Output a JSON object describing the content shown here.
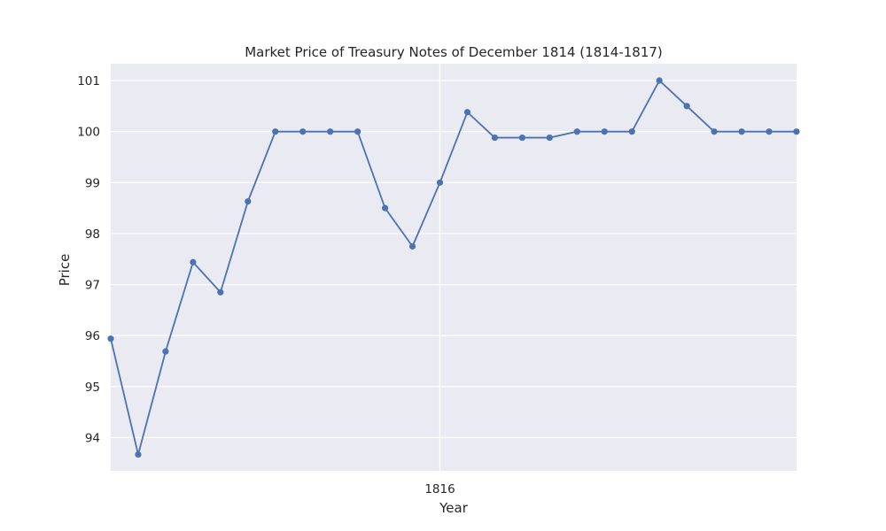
{
  "chart_data": {
    "type": "line",
    "title": "Market Price of Treasury Notes of December 1814 (1814-1817)",
    "xlabel": "Year",
    "ylabel": "Price",
    "x": [
      "1815-01",
      "1815-02",
      "1815-03",
      "1815-04",
      "1815-05",
      "1815-06",
      "1815-07",
      "1815-08",
      "1815-09",
      "1815-10",
      "1815-11",
      "1815-12",
      "1816-01",
      "1816-02",
      "1816-03",
      "1816-04",
      "1816-05",
      "1816-06",
      "1816-07",
      "1816-08",
      "1816-09",
      "1816-10",
      "1816-11",
      "1816-12",
      "1817-01",
      "1817-02"
    ],
    "series": [
      {
        "name": "",
        "color": "#4c72b0",
        "values": [
          95.94,
          93.67,
          95.69,
          97.44,
          96.85,
          98.63,
          100.0,
          100.0,
          100.0,
          100.0,
          98.5,
          97.75,
          99.0,
          100.38,
          99.88,
          99.88,
          99.88,
          100.0,
          100.0,
          100.0,
          101.0,
          100.5,
          100.0,
          100.0,
          100.0,
          100.0
        ]
      }
    ],
    "xtick_labels": [
      {
        "label": "1816",
        "at": "1816-01"
      }
    ],
    "yticks": [
      94,
      95,
      96,
      97,
      98,
      99,
      100,
      101
    ],
    "ylim": [
      93.35,
      101.33
    ],
    "grid": true,
    "background": "#eaeaf2",
    "grid_color": "#ffffff"
  }
}
